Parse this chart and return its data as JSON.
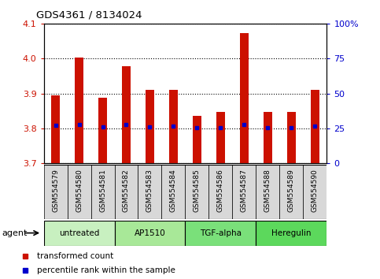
{
  "title": "GDS4361 / 8134024",
  "samples": [
    "GSM554579",
    "GSM554580",
    "GSM554581",
    "GSM554582",
    "GSM554583",
    "GSM554584",
    "GSM554585",
    "GSM554586",
    "GSM554587",
    "GSM554588",
    "GSM554589",
    "GSM554590"
  ],
  "red_values": [
    3.895,
    4.002,
    3.888,
    3.978,
    3.91,
    3.91,
    3.835,
    3.847,
    4.073,
    3.847,
    3.847,
    3.91
  ],
  "blue_values": [
    3.808,
    3.81,
    3.804,
    3.811,
    3.805,
    3.807,
    3.803,
    3.803,
    3.812,
    3.803,
    3.803,
    3.806
  ],
  "ylim": [
    3.7,
    4.1
  ],
  "yticks": [
    3.7,
    3.8,
    3.9,
    4.0,
    4.1
  ],
  "y2ticks_vals": [
    0,
    25,
    50,
    75,
    100
  ],
  "y2ticks_labels": [
    "0",
    "25",
    "50",
    "75",
    "100%"
  ],
  "groups": [
    {
      "label": "untreated",
      "start": 0,
      "end": 2
    },
    {
      "label": "AP1510",
      "start": 3,
      "end": 5
    },
    {
      "label": "TGF-alpha",
      "start": 6,
      "end": 8
    },
    {
      "label": "Heregulin",
      "start": 9,
      "end": 11
    }
  ],
  "group_colors": [
    "#c8f0c0",
    "#a8e898",
    "#7ae07a",
    "#5cd85c"
  ],
  "bar_color": "#cc1100",
  "bar_bottom": 3.7,
  "dot_color": "#0000cc",
  "bar_width": 0.35,
  "red_color": "#cc1100",
  "blue_color": "#0000cc",
  "sample_bg_color": "#d8d8d8",
  "legend_red": "transformed count",
  "legend_blue": "percentile rank within the sample"
}
